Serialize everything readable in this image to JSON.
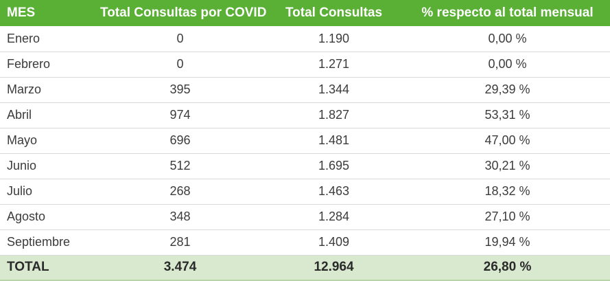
{
  "table": {
    "headers": [
      "MES",
      "Total Consultas por COVID",
      "Total Consultas",
      "% respecto al total mensual"
    ],
    "rows": [
      {
        "mes": "Enero",
        "covid": "0",
        "total": "1.190",
        "pct": "0,00 %"
      },
      {
        "mes": "Febrero",
        "covid": "0",
        "total": "1.271",
        "pct": "0,00 %"
      },
      {
        "mes": "Marzo",
        "covid": "395",
        "total": "1.344",
        "pct": "29,39 %"
      },
      {
        "mes": "Abril",
        "covid": "974",
        "total": "1.827",
        "pct": "53,31 %"
      },
      {
        "mes": "Mayo",
        "covid": "696",
        "total": "1.481",
        "pct": "47,00 %"
      },
      {
        "mes": "Junio",
        "covid": "512",
        "total": "1.695",
        "pct": "30,21 %"
      },
      {
        "mes": "Julio",
        "covid": "268",
        "total": "1.463",
        "pct": "18,32 %"
      },
      {
        "mes": "Agosto",
        "covid": "348",
        "total": "1.284",
        "pct": "27,10 %"
      },
      {
        "mes": "Septiembre",
        "covid": "281",
        "total": "1.409",
        "pct": "19,94 %"
      }
    ],
    "total_row": {
      "mes": "TOTAL",
      "covid": "3.474",
      "total": "12.964",
      "pct": "26,80 %"
    }
  },
  "colors": {
    "header_bg": "#5aaf35",
    "header_text": "#ffffff",
    "total_bg": "#d8e9cf",
    "row_divider": "#d9d9d9"
  }
}
